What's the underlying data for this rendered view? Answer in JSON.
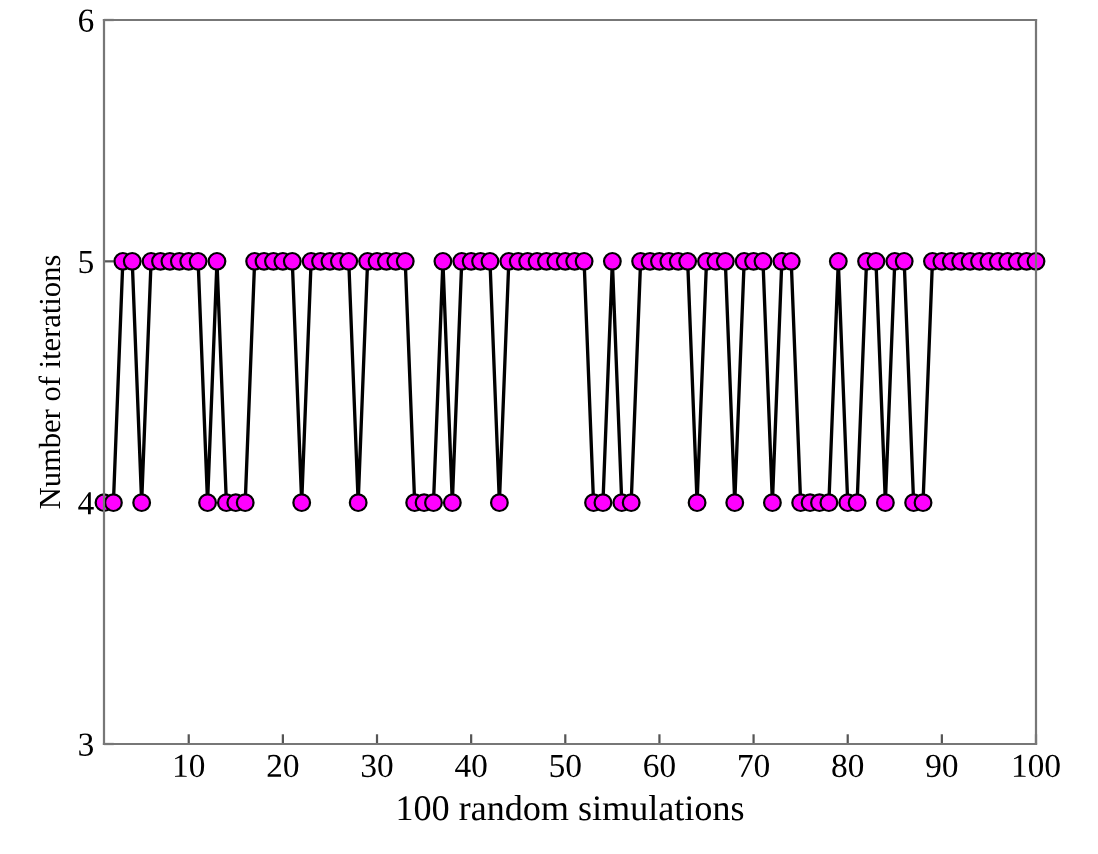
{
  "chart_data": {
    "type": "line",
    "xlabel": "100 random simulations",
    "ylabel": "Number of iterations",
    "x": [
      1,
      2,
      3,
      4,
      5,
      6,
      7,
      8,
      9,
      10,
      11,
      12,
      13,
      14,
      15,
      16,
      17,
      18,
      19,
      20,
      21,
      22,
      23,
      24,
      25,
      26,
      27,
      28,
      29,
      30,
      31,
      32,
      33,
      34,
      35,
      36,
      37,
      38,
      39,
      40,
      41,
      42,
      43,
      44,
      45,
      46,
      47,
      48,
      49,
      50,
      51,
      52,
      53,
      54,
      55,
      56,
      57,
      58,
      59,
      60,
      61,
      62,
      63,
      64,
      65,
      66,
      67,
      68,
      69,
      70,
      71,
      72,
      73,
      74,
      75,
      76,
      77,
      78,
      79,
      80,
      81,
      82,
      83,
      84,
      85,
      86,
      87,
      88,
      89,
      90,
      91,
      92,
      93,
      94,
      95,
      96,
      97,
      98,
      99,
      100
    ],
    "series": [
      {
        "color": "#ff00ff",
        "values": [
          4,
          4,
          5,
          5,
          4,
          5,
          5,
          5,
          5,
          5,
          5,
          4,
          5,
          4,
          4,
          4,
          5,
          5,
          5,
          5,
          5,
          4,
          5,
          5,
          5,
          5,
          5,
          4,
          5,
          5,
          5,
          5,
          5,
          4,
          4,
          4,
          5,
          4,
          5,
          5,
          5,
          5,
          4,
          5,
          5,
          5,
          5,
          5,
          5,
          5,
          5,
          5,
          4,
          4,
          5,
          4,
          4,
          5,
          5,
          5,
          5,
          5,
          5,
          4,
          5,
          5,
          5,
          4,
          5,
          5,
          5,
          4,
          5,
          5,
          4,
          4,
          4,
          4,
          5,
          4,
          4,
          5,
          5,
          4,
          5,
          5,
          4,
          4,
          5,
          5,
          5,
          5,
          5,
          5,
          5,
          5,
          5,
          5,
          5,
          5
        ]
      }
    ],
    "xlim": [
      1,
      100
    ],
    "xticks": [
      10,
      20,
      30,
      40,
      50,
      60,
      70,
      80,
      90,
      100
    ],
    "ylim": [
      3,
      6
    ],
    "yticks": [
      3,
      4,
      5,
      6
    ],
    "marker": "circle",
    "line_style": "solid",
    "grid": false,
    "legend": false
  }
}
